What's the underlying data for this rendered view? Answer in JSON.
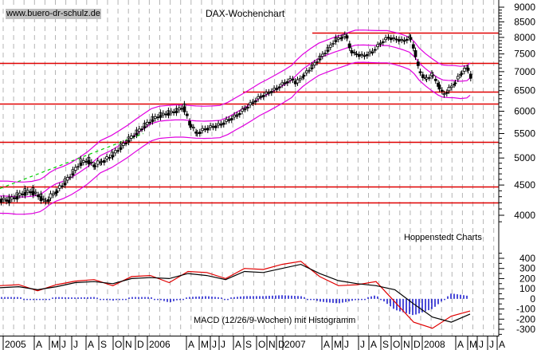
{
  "header": {
    "source_label": "www.buero-dr-schulz.de",
    "title": "DAX-Wochenchart",
    "credit": "Hoppenstedt Charts",
    "macd_label": "MACD (12/26/9-Wochen) mit Histogramm"
  },
  "colors": {
    "grid": "#b4b4b4",
    "support_resistance": "#e00000",
    "bollinger": "#e000e0",
    "trendline": "#00d000",
    "candle": "#000000",
    "macd": "#000000",
    "signal": "#e00000",
    "histogram": "#0000c8"
  },
  "chart_data": [
    {
      "type": "candlestick",
      "title": "DAX-Wochenchart",
      "ylabel": "",
      "ylim": [
        3600,
        9000
      ],
      "yticks": [
        4000,
        4500,
        5000,
        5500,
        6000,
        6500,
        7000,
        7500,
        8000,
        8500,
        9000
      ],
      "x_labels": [
        "2005",
        "A",
        "M",
        "J",
        "J",
        "A",
        "S",
        "O",
        "N",
        "D",
        "2006",
        "A",
        "M",
        "J",
        "J",
        "A",
        "S",
        "O",
        "N",
        "D",
        "2007",
        "A",
        "M",
        "J",
        "J",
        "A",
        "S",
        "O",
        "N",
        "D",
        "2008",
        "A",
        "M",
        "J",
        "J",
        "A"
      ],
      "horizontal_lines": [
        8150,
        7230,
        6480,
        6180,
        5320,
        4480,
        4200
      ],
      "overlays": [
        "Bollinger Bands (upper, middle, lower)",
        "green dashed trendline 2005-2006"
      ],
      "close_series_approx": {
        "dates": [
          "2005-01",
          "2005-04",
          "2005-06",
          "2005-09",
          "2005-12",
          "2006-03",
          "2006-05",
          "2006-06",
          "2006-09",
          "2006-12",
          "2007-03",
          "2007-06",
          "2007-07",
          "2007-08",
          "2007-10",
          "2007-12",
          "2008-01",
          "2008-03",
          "2008-04",
          "2008-05",
          "2008-06"
        ],
        "values": [
          4250,
          4350,
          4550,
          4900,
          5400,
          5950,
          6000,
          5650,
          5900,
          6600,
          6900,
          7900,
          8100,
          7500,
          7950,
          8000,
          6800,
          6300,
          6700,
          7050,
          6900
        ]
      },
      "legend": "none",
      "grid": true
    },
    {
      "type": "line",
      "title": "MACD (12/26/9-Wochen) mit Histogramm",
      "ylim": [
        -350,
        450
      ],
      "yticks": [
        400,
        300,
        200,
        100,
        0,
        -100,
        -200,
        -300
      ],
      "series": [
        {
          "name": "MACD",
          "color": "black",
          "values_approx": [
            110,
            120,
            90,
            120,
            160,
            170,
            150,
            200,
            210,
            200,
            250,
            230,
            190,
            270,
            260,
            300,
            340,
            250,
            180,
            150,
            130,
            90,
            -50,
            -180,
            -230,
            -150
          ]
        },
        {
          "name": "Signal",
          "color": "red",
          "values_approx": [
            130,
            140,
            80,
            140,
            175,
            190,
            130,
            220,
            230,
            160,
            270,
            260,
            200,
            300,
            290,
            340,
            370,
            220,
            130,
            140,
            170,
            -30,
            -230,
            -290,
            -170,
            -120
          ]
        },
        {
          "name": "Histogramm",
          "color": "blue",
          "type": "bar"
        }
      ]
    }
  ],
  "axes": {
    "price_ticks": [
      "9000",
      "8500",
      "8000",
      "7500",
      "7000",
      "6500",
      "6000",
      "5500",
      "5000",
      "4500",
      "4000"
    ],
    "macd_ticks": [
      "400",
      "300",
      "200",
      "100",
      "0",
      "-100",
      "-200",
      "-300"
    ],
    "months": [
      "2005",
      "A",
      "M",
      "J",
      "J",
      "A",
      "S",
      "O",
      "N",
      "D",
      "2006",
      "A",
      "M",
      "J",
      "J",
      "A",
      "S",
      "O",
      "N",
      "D",
      "2007",
      "A",
      "M",
      "J",
      "J",
      "A",
      "S",
      "O",
      "N",
      "D",
      "2008",
      "A",
      "M",
      "J",
      "J",
      "A"
    ]
  }
}
